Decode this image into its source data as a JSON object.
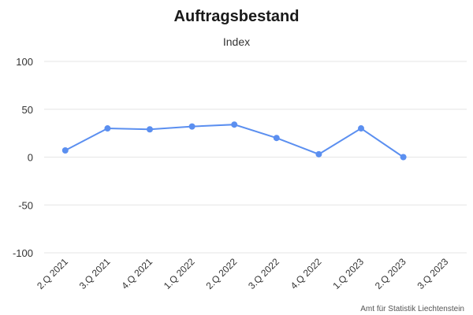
{
  "chart_data": {
    "type": "line",
    "title": "Auftragsbestand",
    "subtitle": "Index",
    "categories": [
      "2.Q 2021",
      "3.Q 2021",
      "4.Q 2021",
      "1.Q 2022",
      "2.Q 2022",
      "3.Q 2022",
      "4.Q 2022",
      "1.Q 2023",
      "2.Q 2023",
      "3.Q 2023"
    ],
    "series": [
      {
        "values": [
          7,
          30,
          29,
          32,
          34,
          20,
          3,
          30,
          0,
          null
        ]
      }
    ],
    "yticks": [
      100,
      50,
      0,
      -50,
      -100
    ],
    "ylim": [
      -100,
      100
    ],
    "grid": true,
    "color": "#5b8ff0"
  },
  "credit": "Amt für Statistik Liechtenstein"
}
